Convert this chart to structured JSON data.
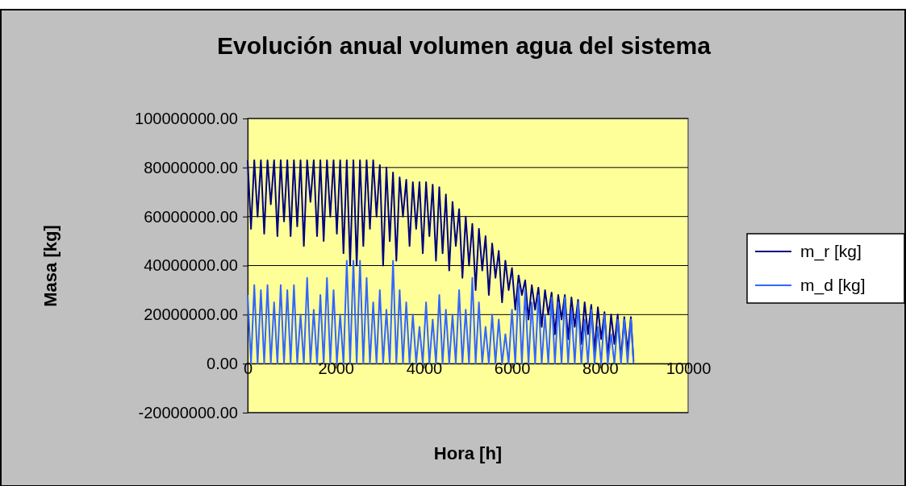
{
  "chart_data": {
    "type": "line",
    "title": "Evolución anual volumen agua del sistema",
    "xlabel": "Hora  [h]",
    "ylabel": "Masa [kg]",
    "x": [
      0,
      75,
      150,
      225,
      300,
      375,
      450,
      525,
      600,
      675,
      750,
      825,
      900,
      975,
      1050,
      1125,
      1200,
      1275,
      1350,
      1425,
      1500,
      1575,
      1650,
      1725,
      1800,
      1875,
      1950,
      2025,
      2100,
      2175,
      2250,
      2325,
      2400,
      2475,
      2550,
      2625,
      2700,
      2775,
      2850,
      2925,
      3000,
      3075,
      3150,
      3225,
      3300,
      3375,
      3450,
      3525,
      3600,
      3675,
      3750,
      3825,
      3900,
      3975,
      4050,
      4125,
      4200,
      4275,
      4350,
      4425,
      4500,
      4575,
      4650,
      4725,
      4800,
      4875,
      4950,
      5025,
      5100,
      5175,
      5250,
      5325,
      5400,
      5475,
      5550,
      5625,
      5700,
      5775,
      5850,
      5925,
      6000,
      6075,
      6150,
      6225,
      6300,
      6375,
      6450,
      6525,
      6600,
      6675,
      6750,
      6825,
      6900,
      6975,
      7050,
      7125,
      7200,
      7275,
      7350,
      7425,
      7500,
      7575,
      7650,
      7725,
      7800,
      7875,
      7950,
      8025,
      8100,
      8175,
      8250,
      8325,
      8400,
      8475,
      8550,
      8625,
      8700,
      8760
    ],
    "series": [
      {
        "name": "m_r [kg]",
        "color": "#000080",
        "values": [
          83000000,
          55000000,
          83000000,
          60000000,
          83000000,
          53000000,
          83000000,
          65000000,
          83000000,
          52000000,
          83000000,
          58000000,
          83000000,
          52000000,
          83000000,
          56000000,
          83000000,
          48000000,
          83000000,
          66000000,
          83000000,
          52000000,
          83000000,
          50000000,
          83000000,
          60000000,
          83000000,
          53000000,
          83000000,
          45000000,
          83000000,
          40000000,
          83000000,
          40000000,
          83000000,
          48000000,
          83000000,
          55000000,
          83000000,
          60000000,
          81000000,
          40000000,
          80000000,
          50000000,
          78000000,
          42000000,
          76000000,
          60000000,
          75000000,
          48000000,
          74000000,
          55000000,
          74000000,
          45000000,
          74000000,
          52000000,
          73000000,
          42000000,
          72000000,
          45000000,
          69000000,
          38000000,
          66000000,
          48000000,
          63000000,
          35000000,
          60000000,
          40000000,
          57000000,
          30000000,
          55000000,
          38000000,
          52000000,
          28000000,
          49000000,
          35000000,
          46000000,
          25000000,
          42000000,
          30000000,
          39000000,
          22000000,
          36000000,
          28000000,
          34000000,
          18000000,
          32000000,
          22000000,
          31000000,
          15000000,
          30000000,
          20000000,
          29000000,
          12000000,
          28000000,
          18000000,
          28000000,
          10000000,
          27000000,
          15000000,
          26000000,
          8000000,
          25000000,
          12000000,
          24000000,
          5000000,
          23000000,
          10000000,
          21000000,
          3000000,
          20000000,
          8000000,
          20000000,
          2000000,
          19000000,
          5000000,
          19000000,
          1000000
        ]
      },
      {
        "name": "m_d [kg]",
        "color": "#3366ff",
        "values": [
          28000000,
          0,
          32000000,
          0,
          30000000,
          0,
          32000000,
          0,
          25000000,
          0,
          32000000,
          0,
          30000000,
          0,
          32000000,
          0,
          20000000,
          0,
          35000000,
          0,
          22000000,
          0,
          28000000,
          0,
          35000000,
          0,
          30000000,
          0,
          20000000,
          0,
          42000000,
          0,
          42000000,
          0,
          42000000,
          0,
          35000000,
          0,
          25000000,
          0,
          30000000,
          0,
          22000000,
          0,
          42000000,
          0,
          30000000,
          0,
          25000000,
          0,
          20000000,
          0,
          15000000,
          0,
          25000000,
          0,
          18000000,
          0,
          28000000,
          0,
          22000000,
          0,
          20000000,
          0,
          30000000,
          0,
          22000000,
          0,
          35000000,
          0,
          25000000,
          0,
          15000000,
          0,
          20000000,
          0,
          18000000,
          0,
          12000000,
          0,
          22000000,
          0,
          32000000,
          0,
          30000000,
          0,
          25000000,
          0,
          28000000,
          0,
          20000000,
          0,
          27000000,
          0,
          25000000,
          0,
          27000000,
          0,
          22000000,
          0,
          25000000,
          0,
          18000000,
          0,
          22000000,
          0,
          15000000,
          0,
          20000000,
          0,
          12000000,
          0,
          18000000,
          0,
          18000000,
          0,
          18000000,
          0
        ]
      }
    ],
    "xlim": [
      0,
      10000
    ],
    "xticks": [
      0,
      2000,
      4000,
      6000,
      8000,
      10000
    ],
    "ylim": [
      -20000000,
      100000000
    ],
    "yticks": [
      {
        "value": -20000000,
        "label": "-20000000.00"
      },
      {
        "value": 0,
        "label": "0.00"
      },
      {
        "value": 20000000,
        "label": "20000000.00"
      },
      {
        "value": 40000000,
        "label": "40000000.00"
      },
      {
        "value": 60000000,
        "label": "60000000.00"
      },
      {
        "value": 80000000,
        "label": "80000000.00"
      },
      {
        "value": 100000000,
        "label": "100000000.00"
      }
    ],
    "grid": "y",
    "legend": "right",
    "marker": "none",
    "line_style": "solid"
  }
}
